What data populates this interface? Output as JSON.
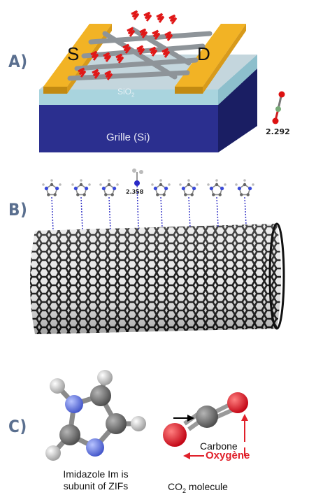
{
  "panels": {
    "a": {
      "label": "A)",
      "source": "S",
      "drain": "D",
      "oxide": "SiO",
      "oxide_sub": "2",
      "gate": "Grille (Si)",
      "distance": "2.292"
    },
    "b": {
      "label": "B)",
      "distance": "2.358"
    },
    "c": {
      "label": "C)",
      "imidazole_caption_line1": "Imidazole Im is",
      "imidazole_caption_line2": "subunit of ZIFs",
      "co2_caption_pre": "CO",
      "co2_caption_sub": "2",
      "co2_caption_post": " molecule",
      "carbon_label": "Carbone",
      "oxygen_label": "Oxygène"
    }
  },
  "colors": {
    "label": "#5a6f8f",
    "gold": "#f2b325",
    "oxide": "#a9d4de",
    "gate": "#2b2f8f",
    "oxygen": "#e0202a",
    "nitrogen": "#5b6fe0",
    "carbon": "#6f6f6f"
  }
}
